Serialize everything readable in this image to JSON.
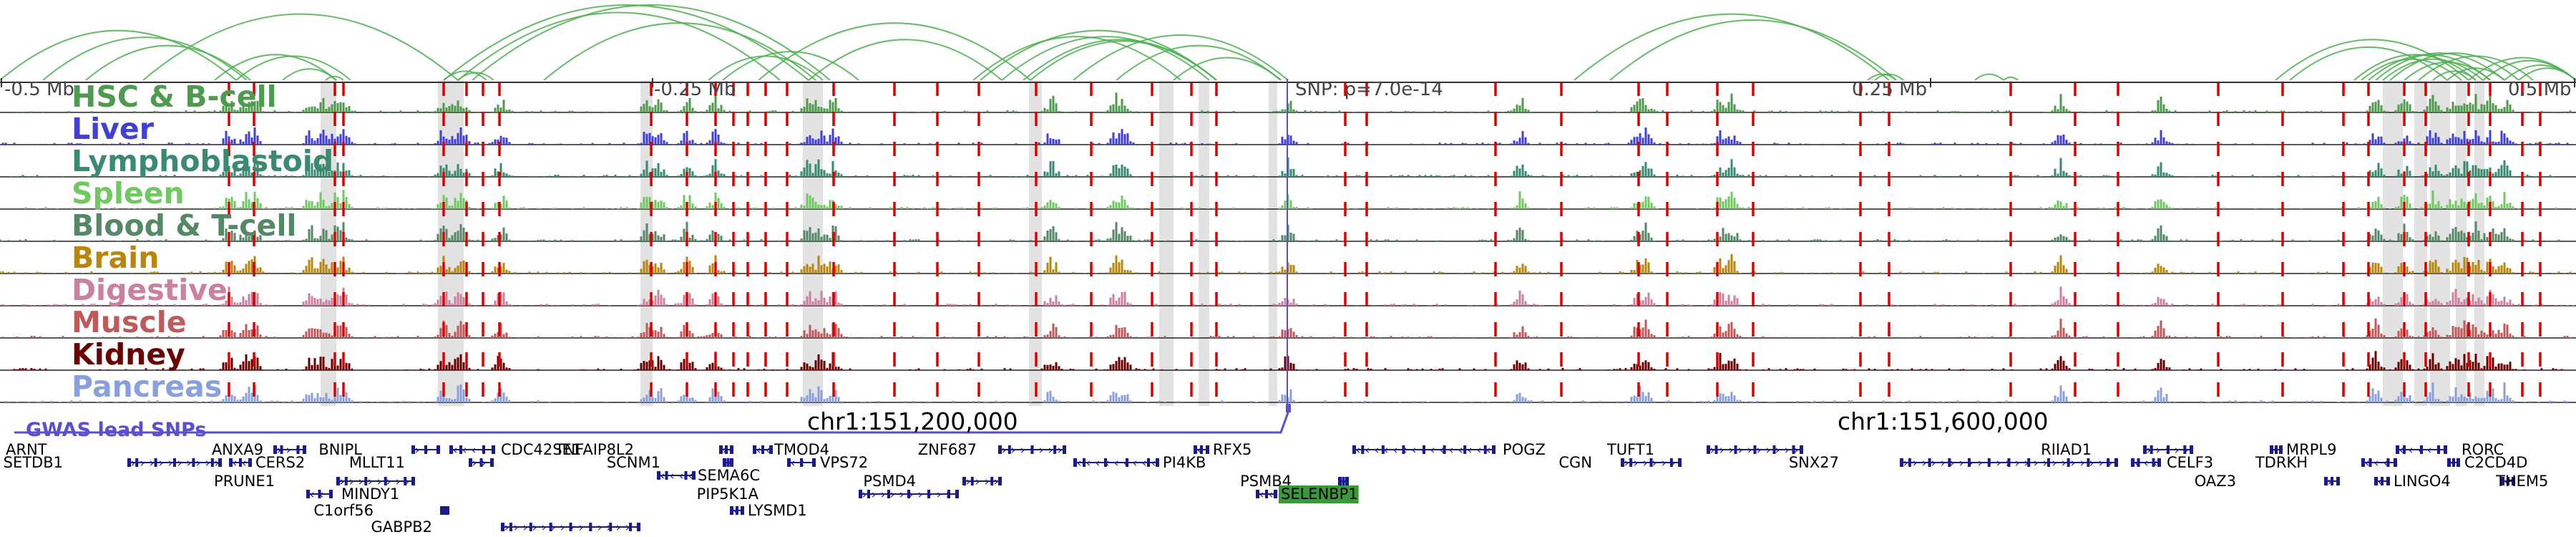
{
  "viewer": {
    "region": "chr1 genome browser view"
  },
  "ruler": {
    "labels": [
      "-0.5 Mb",
      "-0.25 Mb",
      "0.25 Mb",
      "0.5 Mb"
    ],
    "snp_label": "SNP: p=7.0e-14"
  },
  "tracks": [
    {
      "label": "HSC & B-cell",
      "color": "#4e9a4e"
    },
    {
      "label": "Liver",
      "color": "#4040d8"
    },
    {
      "label": "Lymphoblastoid",
      "color": "#3a8a70"
    },
    {
      "label": "Spleen",
      "color": "#70c860"
    },
    {
      "label": "Blood & T-cell",
      "color": "#558866"
    },
    {
      "label": "Brain",
      "color": "#b8860b"
    },
    {
      "label": "Digestive",
      "color": "#cc80a0"
    },
    {
      "label": "Muscle",
      "color": "#c05a5a"
    },
    {
      "label": "Kidney",
      "color": "#6b0000"
    },
    {
      "label": "Pancreas",
      "color": "#8aa0dd"
    }
  ],
  "gwas": {
    "label": "GWAS lead SNPs",
    "color": "#5a4fcf"
  },
  "coordinates": [
    "chr1:151,200,000",
    "chr1:151,600,000"
  ],
  "genes": [
    {
      "name": "ARNT",
      "strand": "-"
    },
    {
      "name": "SETDB1",
      "strand": "+"
    },
    {
      "name": "ANXA9",
      "strand": "+"
    },
    {
      "name": "CERS2",
      "strand": "-"
    },
    {
      "name": "PRUNE1",
      "strand": "+"
    },
    {
      "name": "MINDY1",
      "strand": "-"
    },
    {
      "name": "C1orf56",
      "strand": "+"
    },
    {
      "name": "BNIPL",
      "strand": "+"
    },
    {
      "name": "MLLT11",
      "strand": "+"
    },
    {
      "name": "CDC42SE1",
      "strand": "-"
    },
    {
      "name": "GABPB2",
      "strand": "+"
    },
    {
      "name": "TNFAIP8L2",
      "strand": "+"
    },
    {
      "name": "SCNM1",
      "strand": "+"
    },
    {
      "name": "SEMA6C",
      "strand": "-"
    },
    {
      "name": "LYSMD1",
      "strand": "-"
    },
    {
      "name": "TMOD4",
      "strand": "-"
    },
    {
      "name": "VPS72",
      "strand": "-"
    },
    {
      "name": "PIP5K1A",
      "strand": "+"
    },
    {
      "name": "PSMD4",
      "strand": "+"
    },
    {
      "name": "ZNF687",
      "strand": "+"
    },
    {
      "name": "PI4KB",
      "strand": "-"
    },
    {
      "name": "RFX5",
      "strand": "-"
    },
    {
      "name": "PSMB4",
      "strand": "+"
    },
    {
      "name": "SELENBP1",
      "strand": "-"
    },
    {
      "name": "POGZ",
      "strand": "-"
    },
    {
      "name": "CGN",
      "strand": "+"
    },
    {
      "name": "TUFT1",
      "strand": "+"
    },
    {
      "name": "SNX27",
      "strand": "+"
    },
    {
      "name": "RIIAD1",
      "strand": "+"
    },
    {
      "name": "CELF3",
      "strand": "-"
    },
    {
      "name": "MRPL9",
      "strand": "-"
    },
    {
      "name": "OAZ3",
      "strand": "+"
    },
    {
      "name": "TDRKH",
      "strand": "-"
    },
    {
      "name": "LINGO4",
      "strand": "-"
    },
    {
      "name": "RORC",
      "strand": "-"
    },
    {
      "name": "C2CD4D",
      "strand": "-"
    },
    {
      "name": "THEM5",
      "strand": "-"
    }
  ],
  "highlighted_gene": {
    "name": "SELENBP1",
    "color": "#3a9a3a"
  },
  "colors": {
    "arc": "#4caf50",
    "marker_red": "#dd0000",
    "gene_body": "#1a1a8c",
    "ruler": "#333333"
  }
}
